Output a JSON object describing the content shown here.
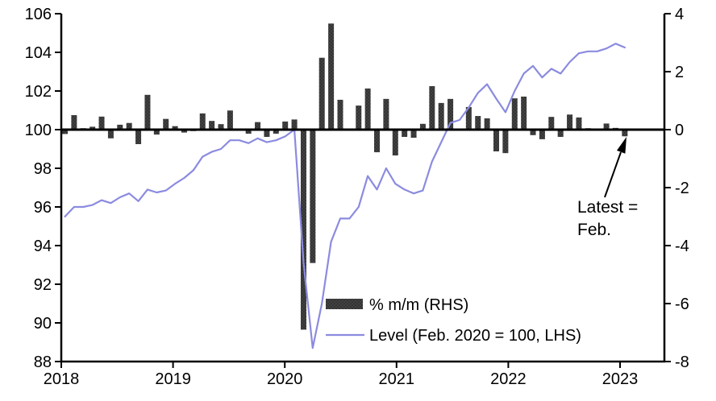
{
  "chart_data": {
    "type": "combo",
    "title": "",
    "frequency": "monthly",
    "period_start": "2018-01",
    "period_end": "2023-02",
    "x_ticks": [
      "2018",
      "2019",
      "2020",
      "2021",
      "2022",
      "2023"
    ],
    "left_axis": {
      "min": 88,
      "max": 106,
      "step": 2,
      "ticks": [
        106,
        104,
        102,
        100,
        98,
        96,
        94,
        92,
        90,
        88
      ]
    },
    "right_axis": {
      "min": -8,
      "max": 4,
      "step": 2,
      "ticks": [
        4,
        2,
        0,
        -2,
        -4,
        -6,
        -8
      ]
    },
    "grid": "off",
    "legend_position": "inside-bottom-center",
    "series": [
      {
        "name": "% m/m (RHS)",
        "type": "bar",
        "axis": "right",
        "color": "#333333",
        "dot_texture_color": "#5a5a5a",
        "values": [
          -0.15,
          0.5,
          0.05,
          0.1,
          0.45,
          -0.3,
          0.17,
          0.23,
          -0.5,
          1.2,
          -0.17,
          0.37,
          0.12,
          -0.1,
          -0.05,
          0.56,
          0.3,
          0.19,
          0.66,
          0.0,
          -0.14,
          0.26,
          -0.25,
          -0.14,
          0.28,
          0.35,
          -6.9,
          -4.6,
          2.48,
          3.66,
          1.03,
          0.0,
          0.83,
          1.42,
          -0.78,
          1.06,
          -0.89,
          -0.25,
          -0.28,
          0.2,
          1.5,
          0.92,
          1.06,
          0.0,
          0.78,
          0.47,
          0.39,
          -0.75,
          -0.81,
          1.08,
          1.14,
          -0.19,
          -0.33,
          0.44,
          -0.25,
          0.52,
          0.42,
          0.05,
          0.0,
          0.21,
          0.06,
          -0.23
        ]
      },
      {
        "name": "Level (Feb. 2020 = 100, LHS)",
        "type": "line",
        "axis": "left",
        "color": "#8b8be0",
        "values": [
          95.5,
          96.0,
          96.0,
          96.1,
          96.35,
          96.2,
          96.5,
          96.7,
          96.3,
          96.9,
          96.75,
          96.85,
          97.2,
          97.5,
          97.9,
          98.6,
          98.85,
          99.0,
          99.45,
          99.45,
          99.3,
          99.55,
          99.35,
          99.45,
          99.65,
          100.0,
          93.1,
          88.7,
          91.0,
          94.2,
          95.4,
          95.4,
          96.0,
          97.6,
          96.9,
          98.0,
          97.2,
          96.9,
          96.7,
          96.85,
          98.35,
          99.35,
          100.35,
          100.5,
          101.15,
          101.9,
          102.35,
          101.6,
          100.9,
          102.0,
          102.9,
          103.3,
          102.7,
          103.15,
          102.9,
          103.5,
          103.95,
          104.05,
          104.05,
          104.2,
          104.45,
          104.25
        ]
      }
    ],
    "annotation": {
      "line1": "Latest =",
      "line2": "Feb.",
      "points_to": "2023-02"
    },
    "colors": {
      "axis": "#000000",
      "background": "#ffffff"
    }
  }
}
